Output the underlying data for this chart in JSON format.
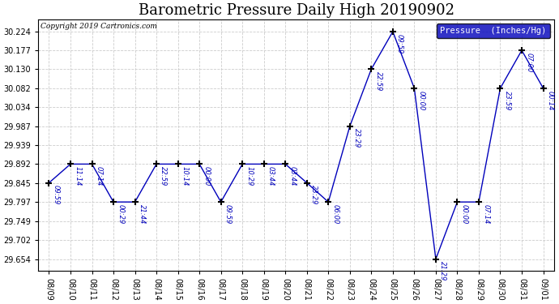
{
  "title": "Barometric Pressure Daily High 20190902",
  "copyright": "Copyright 2019 Cartronics.com",
  "legend_label": "Pressure  (Inches/Hg)",
  "dates": [
    "08/09",
    "08/10",
    "08/11",
    "08/12",
    "08/13",
    "08/14",
    "08/15",
    "08/16",
    "08/17",
    "08/18",
    "08/19",
    "08/20",
    "08/21",
    "08/22",
    "08/23",
    "08/24",
    "08/25",
    "08/26",
    "08/27",
    "08/28",
    "08/29",
    "08/30",
    "08/31",
    "09/01"
  ],
  "values": [
    29.845,
    29.892,
    29.892,
    29.797,
    29.797,
    29.892,
    29.892,
    29.892,
    29.797,
    29.892,
    29.892,
    29.892,
    29.845,
    29.797,
    29.987,
    30.13,
    30.224,
    30.082,
    29.654,
    29.797,
    29.797,
    30.082,
    30.177,
    30.082
  ],
  "time_labels": [
    "09:59",
    "11:14",
    "07:14",
    "00:29",
    "21:44",
    "22:59",
    "10:14",
    "00:00",
    "09:59",
    "10:29",
    "03:44",
    "03:44",
    "23:29",
    "06:00",
    "23:29",
    "22:59",
    "09:59",
    "00:00",
    "21:29",
    "00:00",
    "07:14",
    "23:59",
    "07:00",
    "00:14"
  ],
  "ylim_min": 29.625,
  "ylim_max": 30.255,
  "yticks": [
    29.654,
    29.702,
    29.749,
    29.797,
    29.845,
    29.892,
    29.939,
    29.987,
    30.034,
    30.082,
    30.13,
    30.177,
    30.224
  ],
  "line_color": "#0000bb",
  "bg_color": "#ffffff",
  "grid_color": "#cccccc",
  "title_fontsize": 13,
  "tick_fontsize": 7,
  "annot_fontsize": 6,
  "legend_bg": "#0000bb",
  "legend_fg": "#ffffff",
  "fig_width": 6.9,
  "fig_height": 3.75,
  "dpi": 100
}
